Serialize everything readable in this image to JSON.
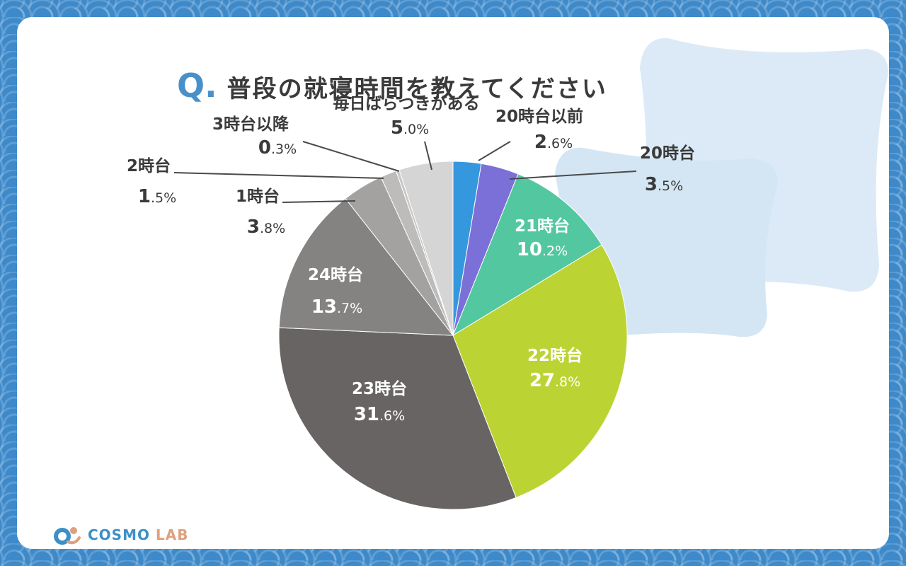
{
  "title": {
    "q_mark": "Q.",
    "text": "普段の就寝時間を教えてください"
  },
  "logo": {
    "part1": "COSMO",
    "part2": "LAB"
  },
  "chart_data": {
    "type": "pie",
    "start_angle": "12 o'clock",
    "direction": "clockwise",
    "slices": [
      {
        "label": "20時台以前",
        "value": 2.6,
        "display": "2.6%",
        "color": "#3597de"
      },
      {
        "label": "20時台",
        "value": 3.5,
        "display": "3.5%",
        "color": "#7a70d8"
      },
      {
        "label": "21時台",
        "value": 10.2,
        "display": "10.2%",
        "color": "#52c7a0"
      },
      {
        "label": "22時台",
        "value": 27.8,
        "display": "27.8%",
        "color": "#bcd334"
      },
      {
        "label": "23時台",
        "value": 31.6,
        "display": "31.6%",
        "color": "#676463"
      },
      {
        "label": "24時台",
        "value": 13.7,
        "display": "13.7%",
        "color": "#858382"
      },
      {
        "label": "1時台",
        "value": 3.8,
        "display": "3.8%",
        "color": "#a3a2a1"
      },
      {
        "label": "2時台",
        "value": 1.5,
        "display": "1.5%",
        "color": "#bdbcbb"
      },
      {
        "label": "3時台以降",
        "value": 0.3,
        "display": "0.3%",
        "color": "#c9c8c7"
      },
      {
        "label": "毎日ばらつきがある",
        "value": 5.0,
        "display": "5.0%",
        "color": "#d6d5d5"
      }
    ]
  }
}
